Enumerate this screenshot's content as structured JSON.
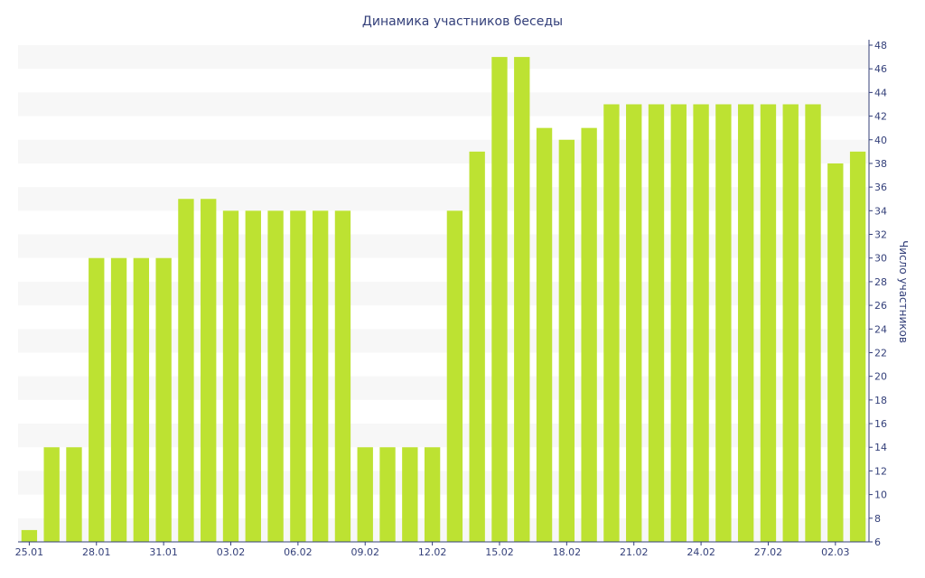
{
  "chart_data": {
    "type": "bar",
    "title": "Динамика участников беседы",
    "xlabel": "",
    "ylabel": "Число участников",
    "ylim": [
      6,
      48
    ],
    "y_ticks": [
      6,
      8,
      10,
      12,
      14,
      16,
      18,
      20,
      22,
      24,
      26,
      28,
      30,
      32,
      34,
      36,
      38,
      40,
      42,
      44,
      46,
      48
    ],
    "y_axis_side": "right",
    "grid": "alternating horizontal bands",
    "legend": "none",
    "categories": [
      "25.01",
      "26.01",
      "27.01",
      "28.01",
      "29.01",
      "30.01",
      "31.01",
      "01.02",
      "02.02",
      "03.02",
      "04.02",
      "05.02",
      "06.02",
      "07.02",
      "08.02",
      "09.02",
      "10.02",
      "11.02",
      "12.02",
      "13.02",
      "14.02",
      "15.02",
      "16.02",
      "17.02",
      "18.02",
      "19.02",
      "20.02",
      "21.02",
      "22.02",
      "23.02",
      "24.02",
      "25.02",
      "26.02",
      "27.02",
      "28.02",
      "01.03",
      "02.03",
      "03.03"
    ],
    "x_tick_labels": [
      {
        "index": 0,
        "label": "25.01"
      },
      {
        "index": 3,
        "label": "28.01"
      },
      {
        "index": 6,
        "label": "31.01"
      },
      {
        "index": 9,
        "label": "03.02"
      },
      {
        "index": 12,
        "label": "06.02"
      },
      {
        "index": 15,
        "label": "09.02"
      },
      {
        "index": 18,
        "label": "12.02"
      },
      {
        "index": 21,
        "label": "15.02"
      },
      {
        "index": 24,
        "label": "18.02"
      },
      {
        "index": 27,
        "label": "21.02"
      },
      {
        "index": 30,
        "label": "24.02"
      },
      {
        "index": 33,
        "label": "27.02"
      },
      {
        "index": 36,
        "label": "02.03"
      }
    ],
    "values": [
      7,
      14,
      14,
      30,
      30,
      30,
      30,
      35,
      35,
      34,
      34,
      34,
      34,
      34,
      34,
      14,
      14,
      14,
      14,
      34,
      39,
      47,
      47,
      41,
      40,
      41,
      43,
      43,
      43,
      43,
      43,
      43,
      43,
      43,
      43,
      43,
      38,
      39
    ],
    "bar_color": "#bde232",
    "band_color": "#f7f7f7",
    "axis_color": "#34407a"
  }
}
